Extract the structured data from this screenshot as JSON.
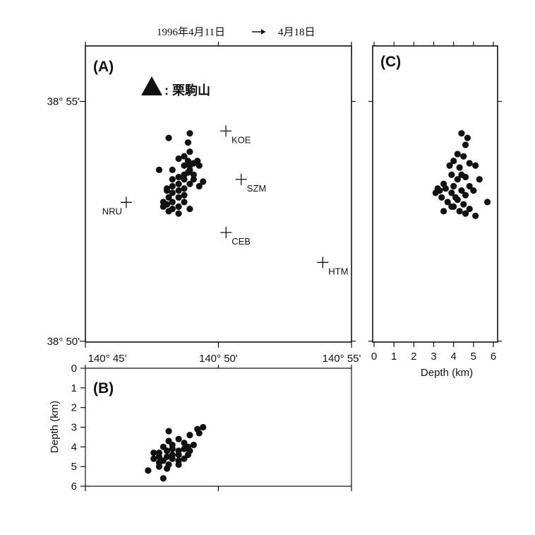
{
  "header": {
    "date_start": "1996年4月11日",
    "arrow": "→",
    "date_end": "4月18日"
  },
  "chart_data": [
    {
      "type": "scatter",
      "panel": "A",
      "panel_label": "(A)",
      "legend_text": ": 栗駒山",
      "legend_symbol": "triangle",
      "xlim": [
        140.75,
        140.9167
      ],
      "ylim": [
        38.833,
        38.936
      ],
      "x_tick_labels": [
        "140° 45'",
        "140° 50'",
        "140° 55'"
      ],
      "x_ticks": [
        140.75,
        140.8333,
        140.9167
      ],
      "y_tick_labels": [
        "38° 50'",
        "38° 55'"
      ],
      "y_ticks": [
        38.8333,
        38.9167
      ],
      "stations": [
        {
          "name": "KOE",
          "x": 140.838,
          "y": 38.9064
        },
        {
          "name": "SZM",
          "x": 140.8476,
          "y": 38.8896
        },
        {
          "name": "NRU",
          "x": 140.7756,
          "y": 38.8816
        },
        {
          "name": "CEB",
          "x": 140.8381,
          "y": 38.8711
        },
        {
          "name": "HTM",
          "x": 140.8987,
          "y": 38.8607
        }
      ],
      "events": [
        {
          "x": 140.8022,
          "y": 38.904
        },
        {
          "x": 140.8154,
          "y": 38.9056
        },
        {
          "x": 140.8143,
          "y": 38.9024
        },
        {
          "x": 140.8154,
          "y": 38.8992
        },
        {
          "x": 140.8119,
          "y": 38.8976
        },
        {
          "x": 140.8084,
          "y": 38.8968
        },
        {
          "x": 140.8143,
          "y": 38.896
        },
        {
          "x": 140.8178,
          "y": 38.8952
        },
        {
          "x": 140.8202,
          "y": 38.896
        },
        {
          "x": 140.8154,
          "y": 38.8944
        },
        {
          "x": 140.8119,
          "y": 38.8944
        },
        {
          "x": 140.8045,
          "y": 38.8929
        },
        {
          "x": 140.7962,
          "y": 38.8929
        },
        {
          "x": 140.8213,
          "y": 38.8944
        },
        {
          "x": 140.8154,
          "y": 38.8929
        },
        {
          "x": 140.8178,
          "y": 38.8912
        },
        {
          "x": 140.8119,
          "y": 38.8912
        },
        {
          "x": 140.8084,
          "y": 38.8904
        },
        {
          "x": 140.8045,
          "y": 38.8896
        },
        {
          "x": 140.8084,
          "y": 38.888
        },
        {
          "x": 140.8045,
          "y": 38.8872
        },
        {
          "x": 140.8011,
          "y": 38.8864
        },
        {
          "x": 140.8084,
          "y": 38.8857
        },
        {
          "x": 140.8119,
          "y": 38.8864
        },
        {
          "x": 140.8154,
          "y": 38.888
        },
        {
          "x": 140.8178,
          "y": 38.8896
        },
        {
          "x": 140.8213,
          "y": 38.8872
        },
        {
          "x": 140.8237,
          "y": 38.8888
        },
        {
          "x": 140.8045,
          "y": 38.8849
        },
        {
          "x": 140.8022,
          "y": 38.8833
        },
        {
          "x": 140.8084,
          "y": 38.8833
        },
        {
          "x": 140.8119,
          "y": 38.8841
        },
        {
          "x": 140.8045,
          "y": 38.8817
        },
        {
          "x": 140.8011,
          "y": 38.8809
        },
        {
          "x": 140.7988,
          "y": 38.8801
        },
        {
          "x": 140.8045,
          "y": 38.8793
        },
        {
          "x": 140.8084,
          "y": 38.8801
        },
        {
          "x": 140.8119,
          "y": 38.8817
        },
        {
          "x": 140.8154,
          "y": 38.8793
        },
        {
          "x": 140.8084,
          "y": 38.8777
        },
        {
          "x": 140.8022,
          "y": 38.8785
        },
        {
          "x": 140.8011,
          "y": 38.8857
        },
        {
          "x": 140.7988,
          "y": 38.8817
        },
        {
          "x": 140.8119,
          "y": 38.8896
        },
        {
          "x": 140.8143,
          "y": 38.892
        }
      ]
    },
    {
      "type": "scatter",
      "panel": "B",
      "panel_label": "(B)",
      "ylabel": "Depth (km)",
      "xlim": [
        140.75,
        140.9167
      ],
      "ylim": [
        0,
        6
      ],
      "y_tick_labels": [
        "0",
        "1",
        "2",
        "3",
        "4",
        "5",
        "6"
      ],
      "y_ticks": [
        0,
        1,
        2,
        3,
        4,
        5,
        6
      ],
      "events": [
        {
          "x": 140.8022,
          "y": 3.2
        },
        {
          "x": 140.8084,
          "y": 3.6
        },
        {
          "x": 140.8119,
          "y": 3.8
        },
        {
          "x": 140.8154,
          "y": 3.4
        },
        {
          "x": 140.8022,
          "y": 3.7
        },
        {
          "x": 140.7988,
          "y": 4.0
        },
        {
          "x": 140.8045,
          "y": 4.1
        },
        {
          "x": 140.7962,
          "y": 4.3
        },
        {
          "x": 140.8011,
          "y": 4.5
        },
        {
          "x": 140.8084,
          "y": 4.2
        },
        {
          "x": 140.8143,
          "y": 4.4
        },
        {
          "x": 140.8178,
          "y": 3.9
        },
        {
          "x": 140.7928,
          "y": 4.6
        },
        {
          "x": 140.7962,
          "y": 4.8
        },
        {
          "x": 140.8022,
          "y": 4.9
        },
        {
          "x": 140.8045,
          "y": 4.4
        },
        {
          "x": 140.8084,
          "y": 4.7
        },
        {
          "x": 140.8119,
          "y": 4.1
        },
        {
          "x": 140.7893,
          "y": 5.2
        },
        {
          "x": 140.7962,
          "y": 5.0
        },
        {
          "x": 140.8011,
          "y": 5.1
        },
        {
          "x": 140.8045,
          "y": 4.6
        },
        {
          "x": 140.7988,
          "y": 5.6
        },
        {
          "x": 140.8202,
          "y": 3.1
        },
        {
          "x": 140.8237,
          "y": 3.0
        },
        {
          "x": 140.8213,
          "y": 3.3
        },
        {
          "x": 140.8143,
          "y": 4.0
        },
        {
          "x": 140.8084,
          "y": 4.4
        },
        {
          "x": 140.7928,
          "y": 4.3
        },
        {
          "x": 140.8045,
          "y": 3.9
        },
        {
          "x": 140.8011,
          "y": 4.2
        },
        {
          "x": 140.7962,
          "y": 4.5
        },
        {
          "x": 140.8084,
          "y": 4.9
        },
        {
          "x": 140.8119,
          "y": 4.6
        },
        {
          "x": 140.7988,
          "y": 4.7
        },
        {
          "x": 140.8154,
          "y": 4.2
        }
      ]
    },
    {
      "type": "scatter",
      "panel": "C",
      "panel_label": "(C)",
      "xlabel": "Depth (km)",
      "xlim": [
        0,
        6
      ],
      "ylim": [
        38.833,
        38.936
      ],
      "x_tick_labels": [
        "0",
        "1",
        "2",
        "3",
        "4",
        "5",
        "6"
      ],
      "x_ticks": [
        0,
        1,
        2,
        3,
        4,
        5,
        6
      ],
      "events": [
        {
          "x": 4.4,
          "y": 38.9056
        },
        {
          "x": 4.7,
          "y": 38.904
        },
        {
          "x": 4.6,
          "y": 38.9016
        },
        {
          "x": 4.2,
          "y": 38.8984
        },
        {
          "x": 4.5,
          "y": 38.8976
        },
        {
          "x": 4.0,
          "y": 38.896
        },
        {
          "x": 4.8,
          "y": 38.8952
        },
        {
          "x": 3.8,
          "y": 38.8944
        },
        {
          "x": 4.3,
          "y": 38.8937
        },
        {
          "x": 5.1,
          "y": 38.8944
        },
        {
          "x": 3.9,
          "y": 38.8912
        },
        {
          "x": 4.6,
          "y": 38.8904
        },
        {
          "x": 4.2,
          "y": 38.8896
        },
        {
          "x": 5.3,
          "y": 38.8896
        },
        {
          "x": 3.5,
          "y": 38.888
        },
        {
          "x": 4.0,
          "y": 38.8872
        },
        {
          "x": 4.8,
          "y": 38.8872
        },
        {
          "x": 3.2,
          "y": 38.8864
        },
        {
          "x": 3.6,
          "y": 38.8864
        },
        {
          "x": 4.4,
          "y": 38.8857
        },
        {
          "x": 5.0,
          "y": 38.8857
        },
        {
          "x": 3.1,
          "y": 38.8849
        },
        {
          "x": 3.9,
          "y": 38.8849
        },
        {
          "x": 4.6,
          "y": 38.8841
        },
        {
          "x": 3.4,
          "y": 38.8833
        },
        {
          "x": 4.2,
          "y": 38.8825
        },
        {
          "x": 5.7,
          "y": 38.8817
        },
        {
          "x": 3.7,
          "y": 38.8817
        },
        {
          "x": 4.5,
          "y": 38.8809
        },
        {
          "x": 4.0,
          "y": 38.8801
        },
        {
          "x": 4.8,
          "y": 38.8793
        },
        {
          "x": 3.5,
          "y": 38.8785
        },
        {
          "x": 4.3,
          "y": 38.8785
        },
        {
          "x": 5.1,
          "y": 38.8769
        },
        {
          "x": 4.6,
          "y": 38.8777
        },
        {
          "x": 3.9,
          "y": 38.8801
        },
        {
          "x": 4.4,
          "y": 38.8912
        },
        {
          "x": 3.3,
          "y": 38.8857
        },
        {
          "x": 4.1,
          "y": 38.8833
        }
      ]
    }
  ]
}
